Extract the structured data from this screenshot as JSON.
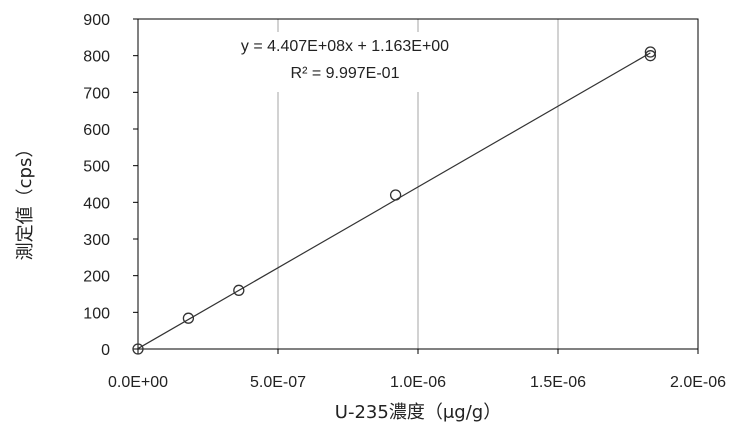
{
  "chart_data": {
    "type": "scatter",
    "xlabel": "U-235濃度（μg/g）",
    "ylabel": "測定値（cps）",
    "xlim": [
      0,
      2e-06
    ],
    "ylim": [
      0,
      900
    ],
    "x_ticks": [
      0,
      5e-07,
      1e-06,
      1.5e-06,
      2e-06
    ],
    "x_tick_labels": [
      "0.0E+00",
      "5.0E-07",
      "1.0E-06",
      "1.5E-06",
      "2.0E-06"
    ],
    "y_ticks": [
      0,
      100,
      200,
      300,
      400,
      500,
      600,
      700,
      800,
      900
    ],
    "y_tick_labels": [
      "0",
      "100",
      "200",
      "300",
      "400",
      "500",
      "600",
      "700",
      "800",
      "900"
    ],
    "grid": {
      "vertical": true,
      "horizontal": false
    },
    "series": [
      {
        "marker": "open-circle",
        "x": [
          0,
          1.8e-07,
          3.6e-07,
          9.2e-07,
          1.83e-06,
          1.83e-06
        ],
        "y": [
          0,
          84,
          160,
          420,
          810,
          800
        ]
      }
    ],
    "trendline": {
      "slope": 440700000.0,
      "intercept": 1.163,
      "x_range": [
        0,
        1.83e-06
      ]
    },
    "annotations": {
      "equation": "y = 4.407E+08x + 1.163E+00",
      "r_squared": "R² = 9.997E-01"
    },
    "colors": {
      "axis": "#000000",
      "grid": "#a6a6a6",
      "marker": "#333333",
      "trendline": "#333333"
    }
  }
}
